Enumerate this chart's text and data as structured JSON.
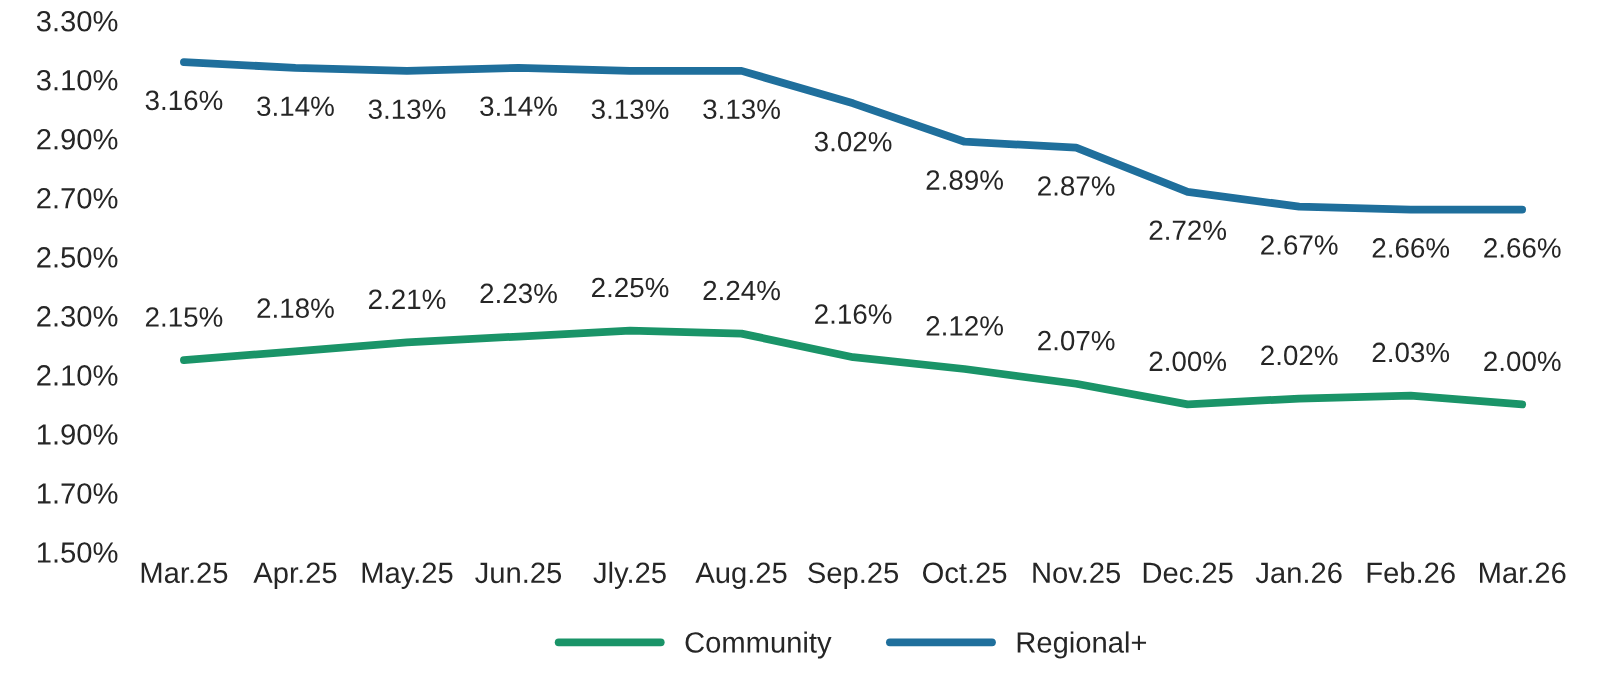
{
  "chart_data": {
    "type": "line",
    "categories": [
      "Mar.25",
      "Apr.25",
      "May.25",
      "Jun.25",
      "Jly.25",
      "Aug.25",
      "Sep.25",
      "Oct.25",
      "Nov.25",
      "Dec.25",
      "Jan.26",
      "Feb.26",
      "Mar.26"
    ],
    "series": [
      {
        "name": "Community",
        "color": "#1a9468",
        "values": [
          2.15,
          2.18,
          2.21,
          2.23,
          2.25,
          2.24,
          2.16,
          2.12,
          2.07,
          2.0,
          2.02,
          2.03,
          2.0
        ],
        "value_labels": [
          "2.15%",
          "2.18%",
          "2.21%",
          "2.23%",
          "2.25%",
          "2.24%",
          "2.16%",
          "2.12%",
          "2.07%",
          "2.00%",
          "2.02%",
          "2.03%",
          "2.00%"
        ]
      },
      {
        "name": "Regional+",
        "color": "#1f6f9c",
        "values": [
          3.16,
          3.14,
          3.13,
          3.14,
          3.13,
          3.13,
          3.02,
          2.89,
          2.87,
          2.72,
          2.67,
          2.66,
          2.66
        ],
        "value_labels": [
          "3.16%",
          "3.14%",
          "3.13%",
          "3.14%",
          "3.13%",
          "3.13%",
          "3.02%",
          "2.89%",
          "2.87%",
          "2.72%",
          "2.67%",
          "2.66%",
          "2.66%"
        ]
      }
    ],
    "ylim": [
      1.5,
      3.3
    ],
    "yticks": [
      {
        "value": 1.5,
        "label": "1.50%"
      },
      {
        "value": 1.7,
        "label": "1.70%"
      },
      {
        "value": 1.9,
        "label": "1.90%"
      },
      {
        "value": 2.1,
        "label": "2.10%"
      },
      {
        "value": 2.3,
        "label": "2.30%"
      },
      {
        "value": 2.5,
        "label": "2.50%"
      },
      {
        "value": 2.7,
        "label": "2.70%"
      },
      {
        "value": 2.9,
        "label": "2.90%"
      },
      {
        "value": 3.1,
        "label": "3.10%"
      },
      {
        "value": 3.3,
        "label": "3.30%"
      }
    ],
    "grid": false,
    "legend": "bottom",
    "marker": "none",
    "line_style": "solid"
  }
}
